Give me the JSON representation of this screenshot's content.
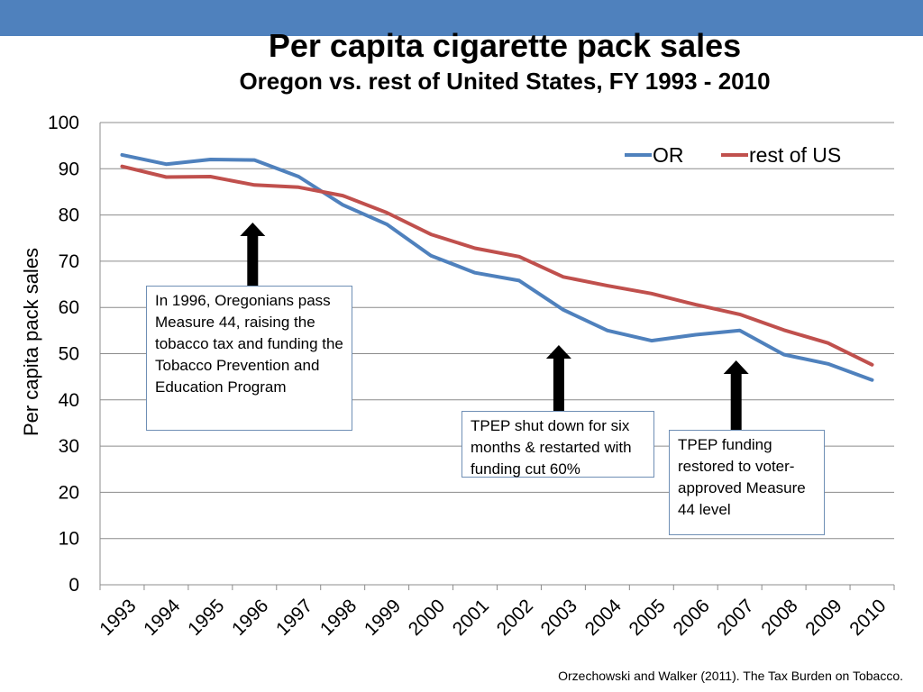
{
  "colors": {
    "top_bar": "#4f81bd",
    "or_line": "#4f81bd",
    "us_line": "#c0504d",
    "grid": "#8c8c8c",
    "arrow": "#000000"
  },
  "title": "Per capita cigarette pack sales",
  "subtitle": "Oregon vs. rest of United States, FY 1993 - 2010",
  "chart_data": {
    "type": "line",
    "ylabel": "Per capita pack sales",
    "xlabel": "",
    "ylim": [
      0,
      100
    ],
    "yticks": [
      0,
      10,
      20,
      30,
      40,
      50,
      60,
      70,
      80,
      90,
      100
    ],
    "grid": true,
    "legend_position": "top-right",
    "categories": [
      "1993",
      "1994",
      "1995",
      "1996",
      "1997",
      "1998",
      "1999",
      "2000",
      "2001",
      "2002",
      "2003",
      "2004",
      "2005",
      "2006",
      "2007",
      "2008",
      "2009",
      "2010"
    ],
    "series": [
      {
        "name": "OR",
        "color": "#4f81bd",
        "values": [
          93.0,
          91.0,
          92.0,
          91.9,
          88.3,
          82.2,
          78.0,
          71.2,
          67.5,
          65.8,
          59.5,
          55.0,
          52.8,
          54.1,
          55.0,
          49.8,
          47.8,
          44.3
        ]
      },
      {
        "name": "rest of US",
        "color": "#c0504d",
        "values": [
          90.5,
          88.2,
          88.3,
          86.5,
          86.0,
          84.2,
          80.5,
          75.8,
          72.8,
          71.0,
          66.6,
          64.7,
          63.0,
          60.6,
          58.5,
          55.1,
          52.3,
          47.6
        ]
      }
    ]
  },
  "annotations": [
    {
      "text": "In 1996, Oregonians pass Measure 44, raising the tobacco tax and funding the Tobacco Prevention and Education Program"
    },
    {
      "text": "TPEP shut down for six months & restarted with funding cut 60%"
    },
    {
      "text": "TPEP funding restored to voter-approved Measure 44 level"
    }
  ],
  "source": "Orzechowski and Walker (2011). The Tax Burden on Tobacco."
}
